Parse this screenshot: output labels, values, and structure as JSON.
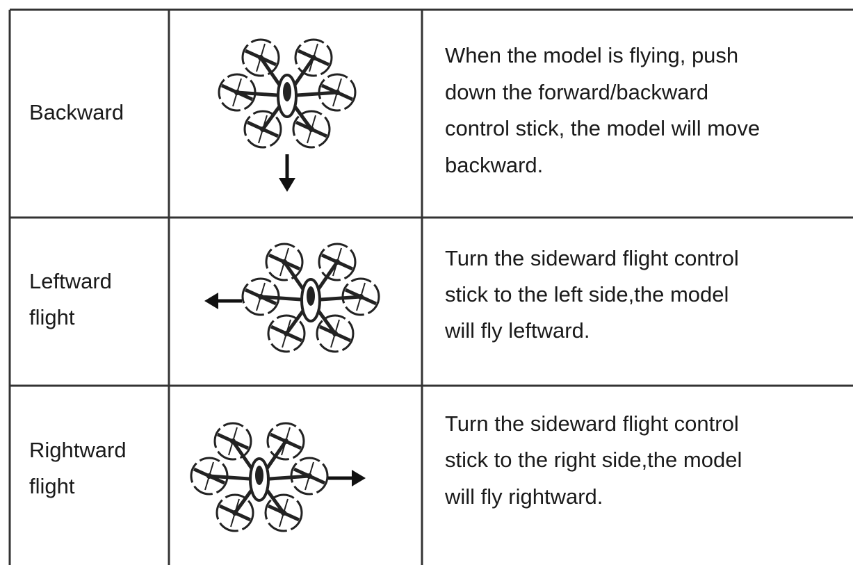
{
  "table": {
    "rows": [
      {
        "label": [
          "Backward"
        ],
        "description": [
          "When the model is flying, push",
          "down the forward/backward",
          "control stick, the model will move",
          "backward."
        ]
      },
      {
        "label": [
          "Leftward",
          "flight"
        ],
        "description": [
          "Turn the sideward flight control",
          "stick to the left side,the model",
          "will fly leftward."
        ]
      },
      {
        "label": [
          "Rightward",
          "flight"
        ],
        "description": [
          "Turn the sideward flight control",
          "stick to the right side,the model",
          "will fly rightward."
        ]
      }
    ]
  }
}
